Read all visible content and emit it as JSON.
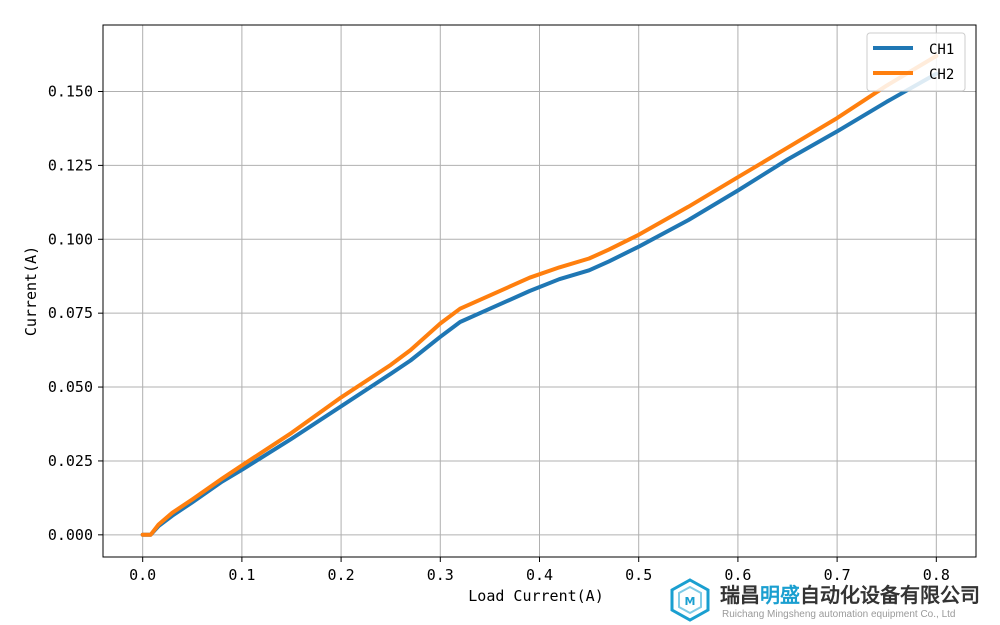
{
  "chart_data": {
    "type": "line",
    "xlabel": "Load Current(A)",
    "ylabel": "Current(A)",
    "xlim": [
      -0.04,
      0.84
    ],
    "ylim": [
      -0.0075,
      0.1725
    ],
    "xticks": [
      0.0,
      0.1,
      0.2,
      0.3,
      0.4,
      0.5,
      0.6,
      0.7,
      0.8
    ],
    "xtick_labels": [
      "0.0",
      "0.1",
      "0.2",
      "0.3",
      "0.4",
      "0.5",
      "0.6",
      "0.7",
      "0.8"
    ],
    "yticks": [
      0.0,
      0.025,
      0.05,
      0.075,
      0.1,
      0.125,
      0.15
    ],
    "ytick_labels": [
      "0.000",
      "0.025",
      "0.050",
      "0.075",
      "0.100",
      "0.125",
      "0.150"
    ],
    "grid": true,
    "legend_position": "top-right",
    "series": [
      {
        "name": "CH1",
        "color": "#1f77b4",
        "x": [
          0.0,
          0.008,
          0.016,
          0.03,
          0.05,
          0.08,
          0.1,
          0.15,
          0.2,
          0.25,
          0.27,
          0.3,
          0.32,
          0.35,
          0.39,
          0.42,
          0.45,
          0.47,
          0.5,
          0.55,
          0.6,
          0.65,
          0.7,
          0.75,
          0.8
        ],
        "y": [
          0.0,
          0.0,
          0.003,
          0.0065,
          0.011,
          0.018,
          0.022,
          0.0325,
          0.0435,
          0.0545,
          0.059,
          0.067,
          0.072,
          0.0765,
          0.0825,
          0.0865,
          0.0895,
          0.0925,
          0.0975,
          0.1065,
          0.1165,
          0.127,
          0.1365,
          0.1465,
          0.156
        ]
      },
      {
        "name": "CH2",
        "color": "#ff7f0e",
        "x": [
          0.0,
          0.008,
          0.016,
          0.03,
          0.05,
          0.08,
          0.1,
          0.15,
          0.2,
          0.25,
          0.27,
          0.3,
          0.32,
          0.35,
          0.39,
          0.42,
          0.45,
          0.47,
          0.5,
          0.55,
          0.6,
          0.65,
          0.7,
          0.75,
          0.8
        ],
        "y": [
          0.0,
          0.0,
          0.0035,
          0.0075,
          0.012,
          0.019,
          0.0235,
          0.0345,
          0.0465,
          0.0575,
          0.0625,
          0.0715,
          0.0765,
          0.081,
          0.087,
          0.0905,
          0.0935,
          0.0965,
          0.1015,
          0.111,
          0.121,
          0.131,
          0.141,
          0.152,
          0.162
        ]
      }
    ]
  },
  "watermark": {
    "cn_part1": "瑞昌",
    "cn_part2": "明盛",
    "cn_part3": "自动化设备有限公司",
    "en": "Ruichang Mingsheng automation equipment Co., Ltd",
    "colors": {
      "dark": "#333333",
      "accent": "#1a9fd0"
    }
  }
}
